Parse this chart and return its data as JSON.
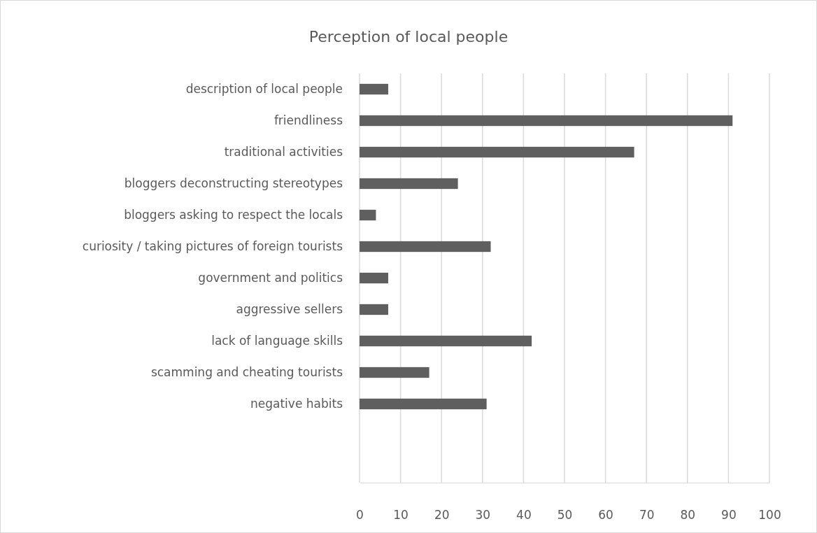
{
  "chart_data": {
    "type": "bar",
    "orientation": "horizontal",
    "title": "Perception of local people",
    "categories": [
      "description of local people",
      "friendliness ",
      "traditional activities",
      "bloggers deconstructing stereotypes",
      "bloggers asking to respect the locals",
      "curiosity / taking pictures of foreign tourists",
      "government and politics",
      "aggressive sellers",
      "lack of language skills",
      "scamming and cheating tourists",
      "negative habits"
    ],
    "values": [
      7,
      91,
      67,
      24,
      4,
      32,
      7,
      7,
      42,
      17,
      31
    ],
    "color": "#5f5f5f",
    "xlim": [
      0,
      100
    ],
    "xticks": [
      0,
      10,
      20,
      30,
      40,
      50,
      60,
      70,
      80,
      90,
      100
    ],
    "grid": "x"
  }
}
